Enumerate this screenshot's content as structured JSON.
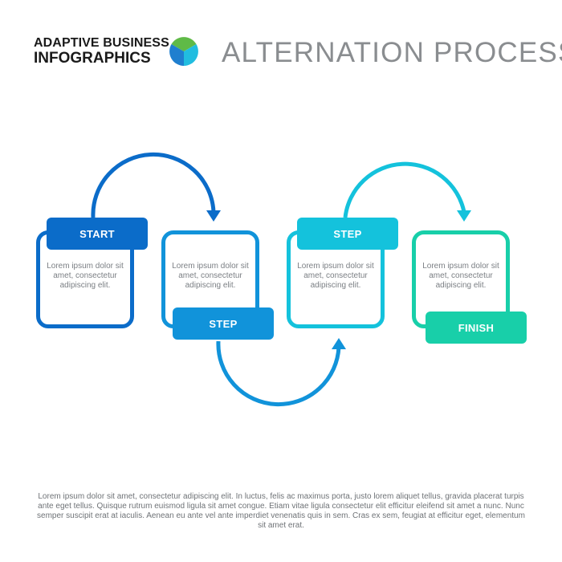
{
  "brand": {
    "line1": "ADAPTIVE BUSINESS",
    "line2": "INFOGRAPHICS"
  },
  "title": "ALTERNATION PROCESS",
  "colors": {
    "step1": "#0b6cc9",
    "step2": "#1193da",
    "step3": "#14c2dc",
    "step4": "#18cfa9",
    "logo_green": "#5fba47",
    "logo_blue": "#1f7fcf",
    "logo_cyan": "#21bde0"
  },
  "steps": [
    {
      "label": "START",
      "text": "Lorem ipsum dolor sit amet, consectetur adipiscing elit."
    },
    {
      "label": "STEP",
      "text": "Lorem ipsum dolor sit amet, consectetur adipiscing elit."
    },
    {
      "label": "STEP",
      "text": "Lorem ipsum dolor sit amet, consectetur adipiscing elit."
    },
    {
      "label": "FINISH",
      "text": "Lorem ipsum dolor sit amet, consectetur adipiscing elit."
    }
  ],
  "footer": "Lorem ipsum dolor sit amet, consectetur adipiscing elit. In luctus, felis ac maximus porta, justo lorem aliquet tellus, gravida placerat turpis ante eget tellus. Quisque rutrum euismod ligula sit amet congue. Etiam vitae ligula consectetur elit efficitur eleifend sit amet a nunc. Nunc semper suscipit erat at iaculis. Aenean eu ante vel ante imperdiet venenatis quis in sem. Cras ex sem, feugiat at efficitur eget, elementum sit amet erat."
}
